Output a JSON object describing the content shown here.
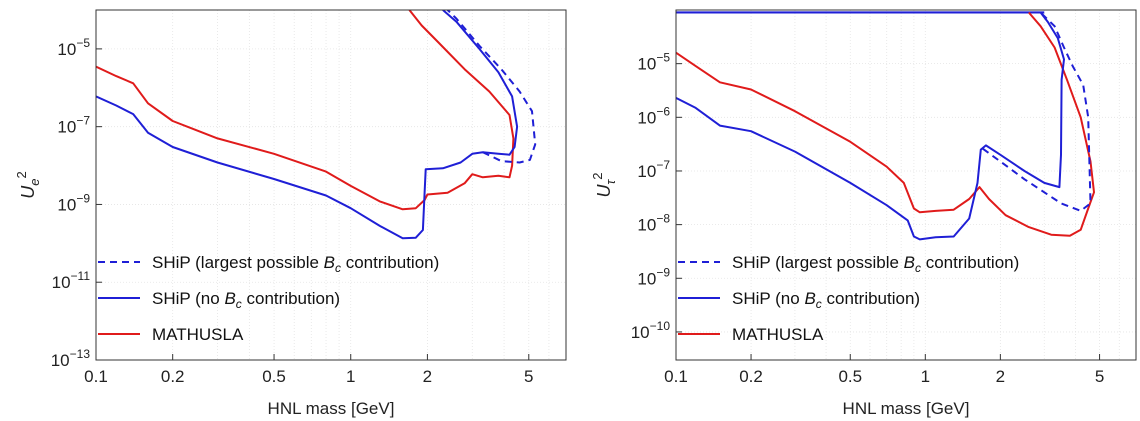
{
  "chart_data": [
    {
      "type": "line",
      "xscale": "log",
      "yscale": "log",
      "xlabel": "HNL mass [GeV]",
      "ylabel": {
        "base": "U",
        "sub": "e",
        "sup": "2"
      },
      "xlim": [
        0.1,
        7
      ],
      "ylim": [
        1e-13,
        0.0001
      ],
      "grid": true,
      "legend": "bottom-left",
      "x_ticks": [
        {
          "value": 0.1,
          "label": "0.1"
        },
        {
          "value": 0.2,
          "label": "0.2"
        },
        {
          "value": 0.5,
          "label": "0.5"
        },
        {
          "value": 1,
          "label": "1"
        },
        {
          "value": 2,
          "label": "2"
        },
        {
          "value": 5,
          "label": "5"
        }
      ],
      "y_ticks": [
        {
          "value": 1e-13,
          "base": "10",
          "exp": "−13"
        },
        {
          "value": 1e-11,
          "base": "10",
          "exp": "−11"
        },
        {
          "value": 1e-09,
          "base": "10",
          "exp": "−9"
        },
        {
          "value": 1e-07,
          "base": "10",
          "exp": "−7"
        },
        {
          "value": 1e-05,
          "base": "10",
          "exp": "−5"
        }
      ],
      "series": [
        {
          "key": "ship_bc",
          "name": "SHiP (largest possible ",
          "name_sym": "B",
          "name_sub": "c",
          "name_tail": " contribution)",
          "color": "#1f1fd6",
          "style": "dashed",
          "points": [
            [
              3.3,
              2.2e-08
            ],
            [
              3.9,
              1.3e-08
            ],
            [
              4.6,
              1.2e-08
            ],
            [
              5.05,
              1.4e-08
            ],
            [
              5.3,
              3.5e-08
            ],
            [
              5.15,
              2.5e-07
            ],
            [
              4.6,
              8e-07
            ],
            [
              3.9,
              3e-06
            ],
            [
              3.2,
              1.2e-05
            ],
            [
              2.6,
              6e-05
            ],
            [
              2.4,
              0.0001
            ]
          ]
        },
        {
          "key": "ship",
          "name": "SHiP (no ",
          "name_sym": "B",
          "name_sub": "c",
          "name_tail": " contribution)",
          "color": "#1f1fd6",
          "style": "solid",
          "points": [
            [
              0.1,
              6e-07
            ],
            [
              0.12,
              3.5e-07
            ],
            [
              0.14,
              2.1e-07
            ],
            [
              0.16,
              7e-08
            ],
            [
              0.2,
              3e-08
            ],
            [
              0.3,
              1.2e-08
            ],
            [
              0.5,
              4.5e-09
            ],
            [
              0.8,
              1.7e-09
            ],
            [
              1.0,
              8e-10
            ],
            [
              1.3,
              2.8e-10
            ],
            [
              1.6,
              1.35e-10
            ],
            [
              1.8,
              1.4e-10
            ],
            [
              1.92,
              2.2e-10
            ],
            [
              1.95,
              2e-09
            ],
            [
              1.97,
              8e-09
            ],
            [
              2.3,
              8.5e-09
            ],
            [
              2.7,
              1.2e-08
            ],
            [
              3.0,
              2e-08
            ],
            [
              3.3,
              2.2e-08
            ],
            [
              3.8,
              2e-08
            ],
            [
              4.2,
              1.9e-08
            ],
            [
              4.4,
              3e-08
            ],
            [
              4.5,
              1e-07
            ],
            [
              4.3,
              6e-07
            ],
            [
              3.8,
              2.5e-06
            ],
            [
              3.2,
              1e-05
            ],
            [
              2.6,
              5e-05
            ],
            [
              2.3,
              0.0001
            ]
          ]
        },
        {
          "key": "mathusla",
          "name": "MATHUSLA",
          "color": "#e01b1b",
          "style": "solid",
          "points": [
            [
              0.1,
              3.5e-06
            ],
            [
              0.12,
              2e-06
            ],
            [
              0.14,
              1.3e-06
            ],
            [
              0.16,
              4e-07
            ],
            [
              0.2,
              1.4e-07
            ],
            [
              0.3,
              5e-08
            ],
            [
              0.5,
              2e-08
            ],
            [
              0.8,
              7e-09
            ],
            [
              1.0,
              3e-09
            ],
            [
              1.3,
              1.2e-09
            ],
            [
              1.6,
              7.5e-10
            ],
            [
              1.8,
              8e-10
            ],
            [
              1.95,
              1.3e-09
            ],
            [
              2.0,
              1.8e-09
            ],
            [
              2.4,
              2e-09
            ],
            [
              2.8,
              3.5e-09
            ],
            [
              3.0,
              6e-09
            ],
            [
              3.3,
              5e-09
            ],
            [
              3.8,
              5.5e-09
            ],
            [
              4.2,
              5e-09
            ],
            [
              4.3,
              1e-08
            ],
            [
              4.35,
              5e-08
            ],
            [
              4.2,
              2e-07
            ],
            [
              3.5,
              8e-07
            ],
            [
              2.8,
              3e-06
            ],
            [
              2.2,
              1.5e-05
            ],
            [
              1.9,
              4e-05
            ],
            [
              1.7,
              0.0001
            ]
          ]
        }
      ]
    },
    {
      "type": "line",
      "xscale": "log",
      "yscale": "log",
      "xlabel": "HNL mass [GeV]",
      "ylabel": {
        "base": "U",
        "sub": "τ",
        "sup": "2"
      },
      "xlim": [
        0.1,
        7
      ],
      "ylim": [
        3e-11,
        0.0001
      ],
      "grid": true,
      "legend": "bottom-left",
      "x_ticks": [
        {
          "value": 0.1,
          "label": "0.1"
        },
        {
          "value": 0.2,
          "label": "0.2"
        },
        {
          "value": 0.5,
          "label": "0.5"
        },
        {
          "value": 1,
          "label": "1"
        },
        {
          "value": 2,
          "label": "2"
        },
        {
          "value": 5,
          "label": "5"
        }
      ],
      "y_ticks": [
        {
          "value": 1e-10,
          "base": "10",
          "exp": "−10"
        },
        {
          "value": 1e-09,
          "base": "10",
          "exp": "−9"
        },
        {
          "value": 1e-08,
          "base": "10",
          "exp": "−8"
        },
        {
          "value": 1e-07,
          "base": "10",
          "exp": "−7"
        },
        {
          "value": 1e-06,
          "base": "10",
          "exp": "−6"
        },
        {
          "value": 1e-05,
          "base": "10",
          "exp": "−5"
        }
      ],
      "series": [
        {
          "key": "ship_bc",
          "name": "SHiP (largest possible ",
          "name_sym": "B",
          "name_sub": "c",
          "name_tail": " contribution)",
          "color": "#1f1fd6",
          "style": "dashed",
          "points": [
            [
              1.7,
              2.6e-07
            ],
            [
              2.0,
              1.5e-07
            ],
            [
              2.5,
              7e-08
            ],
            [
              3.0,
              4e-08
            ],
            [
              3.5,
              2.5e-08
            ],
            [
              4.2,
              1.8e-08
            ],
            [
              4.6,
              2.5e-08
            ],
            [
              4.5,
              1e-06
            ],
            [
              4.3,
              4e-06
            ],
            [
              3.9,
              9e-06
            ],
            [
              3.6,
              2e-05
            ],
            [
              3.3,
              5e-05
            ],
            [
              2.9,
              9e-05
            ]
          ]
        },
        {
          "key": "ship",
          "name": "SHiP (no ",
          "name_sym": "B",
          "name_sub": "c",
          "name_tail": " contribution)",
          "color": "#1f1fd6",
          "style": "solid",
          "points": [
            [
              0.1,
              2.3e-06
            ],
            [
              0.12,
              1.5e-06
            ],
            [
              0.15,
              7e-07
            ],
            [
              0.2,
              5.5e-07
            ],
            [
              0.3,
              2.3e-07
            ],
            [
              0.5,
              6e-08
            ],
            [
              0.7,
              2.3e-08
            ],
            [
              0.85,
              1.2e-08
            ],
            [
              0.9,
              6e-09
            ],
            [
              0.95,
              5.3e-09
            ],
            [
              1.1,
              5.8e-09
            ],
            [
              1.3,
              6e-09
            ],
            [
              1.5,
              1.3e-08
            ],
            [
              1.62,
              6e-08
            ],
            [
              1.67,
              2.5e-07
            ],
            [
              1.75,
              3e-07
            ],
            [
              2.0,
              2e-07
            ],
            [
              2.5,
              1e-07
            ],
            [
              3.0,
              6e-08
            ],
            [
              3.45,
              5e-08
            ],
            [
              3.5,
              2e-07
            ],
            [
              3.52,
              5e-06
            ],
            [
              3.6,
              1.2e-05
            ],
            [
              3.4,
              3e-05
            ],
            [
              3.1,
              6e-05
            ],
            [
              2.9,
              9e-05
            ]
          ]
        },
        {
          "key": "mathusla",
          "name": "MATHUSLA",
          "color": "#e01b1b",
          "style": "solid",
          "points": [
            [
              0.1,
              1.6e-05
            ],
            [
              0.12,
              9e-06
            ],
            [
              0.15,
              4.5e-06
            ],
            [
              0.2,
              3.3e-06
            ],
            [
              0.3,
              1.3e-06
            ],
            [
              0.5,
              3.5e-07
            ],
            [
              0.7,
              1.2e-07
            ],
            [
              0.82,
              6e-08
            ],
            [
              0.9,
              2e-08
            ],
            [
              0.95,
              1.7e-08
            ],
            [
              1.1,
              1.8e-08
            ],
            [
              1.3,
              1.9e-08
            ],
            [
              1.5,
              3e-08
            ],
            [
              1.65,
              5e-08
            ],
            [
              1.8,
              3e-08
            ],
            [
              2.1,
              1.5e-08
            ],
            [
              2.6,
              9e-09
            ],
            [
              3.2,
              6.5e-09
            ],
            [
              3.8,
              6.2e-09
            ],
            [
              4.2,
              8e-09
            ],
            [
              4.5,
              2e-08
            ],
            [
              4.75,
              4e-08
            ],
            [
              4.6,
              1.5e-07
            ],
            [
              4.2,
              1e-06
            ],
            [
              3.7,
              5e-06
            ],
            [
              3.3,
              2e-05
            ],
            [
              2.9,
              5e-05
            ],
            [
              2.6,
              9e-05
            ]
          ]
        }
      ],
      "top_band": {
        "y": 9e-05,
        "x_from": 0.1,
        "x_to": 3.0,
        "color": "#1f1fd6"
      }
    }
  ]
}
